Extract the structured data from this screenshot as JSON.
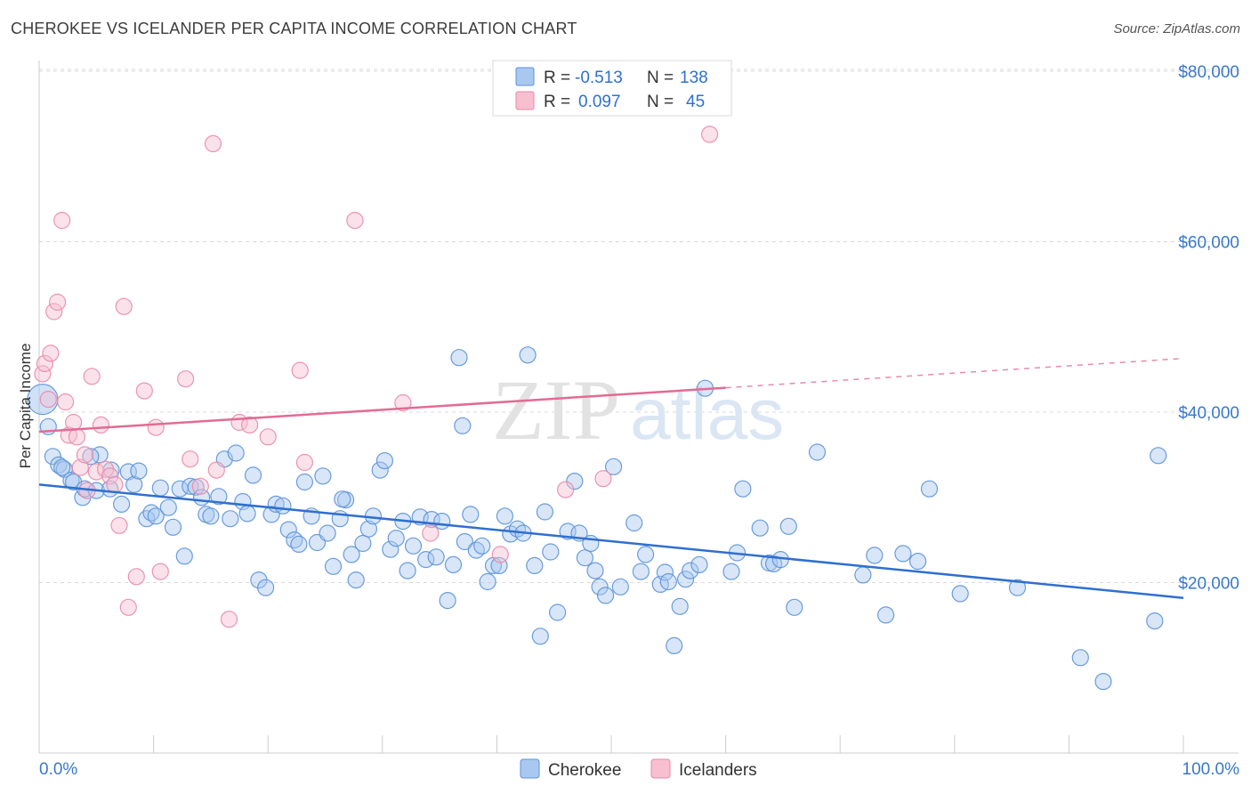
{
  "title": "CHEROKEE VS ICELANDER PER CAPITA INCOME CORRELATION CHART",
  "source": "Source: ZipAtlas.com",
  "watermark": {
    "zip": "ZIP",
    "atlas": "atlas"
  },
  "colors": {
    "cherokee_fill": "#a9c8f0",
    "cherokee_stroke": "#5b92d8",
    "cherokee_line": "#2f6fd0",
    "icelander_fill": "#f7bfd0",
    "icelander_stroke": "#e88aa8",
    "icelander_line": "#e26b94",
    "axis_text": "#3a78c9",
    "grid": "#d9d9d9"
  },
  "legend": {
    "rows": [
      {
        "r_label": "R =",
        "r_value": "-0.513",
        "n_label": "N =",
        "n_value": "138"
      },
      {
        "r_label": "R =",
        "r_value": "0.097",
        "n_label": "N =",
        "n_value": "45"
      }
    ]
  },
  "bottom_legend": [
    "Cherokee",
    "Icelanders"
  ],
  "chart_data": {
    "type": "scatter",
    "title": "CHEROKEE VS ICELANDER PER CAPITA INCOME CORRELATION CHART",
    "xlabel": "",
    "ylabel": "Per Capita Income",
    "xlim": [
      0,
      100
    ],
    "ylim": [
      0,
      82000
    ],
    "x_tick_labels": [
      "0.0%",
      "100.0%"
    ],
    "y_ticks": [
      20000,
      40000,
      60000,
      80000
    ],
    "y_tick_labels": [
      "$20,000",
      "$40,000",
      "$60,000",
      "$80,000"
    ],
    "grid": true,
    "legend_position": "top-center",
    "series": [
      {
        "name": "Cherokee",
        "r": -0.513,
        "n": 138,
        "trend": {
          "x": [
            0,
            100
          ],
          "y": [
            31500,
            18200
          ],
          "dashed_from": null
        },
        "points": [
          [
            0.3,
            41500
          ],
          [
            0.8,
            38300
          ],
          [
            1.2,
            34800
          ],
          [
            1.7,
            33800
          ],
          [
            2.2,
            33300
          ],
          [
            2.8,
            32000
          ],
          [
            3.8,
            30000
          ],
          [
            5.3,
            35000
          ],
          [
            6.3,
            33200
          ],
          [
            2.0,
            33500
          ],
          [
            3.0,
            31800
          ],
          [
            4.0,
            31000
          ],
          [
            4.5,
            34800
          ],
          [
            5.0,
            30800
          ],
          [
            6.2,
            31000
          ],
          [
            7.2,
            29200
          ],
          [
            7.8,
            33000
          ],
          [
            8.3,
            31500
          ],
          [
            8.7,
            33100
          ],
          [
            9.4,
            27500
          ],
          [
            9.8,
            28200
          ],
          [
            10.2,
            27800
          ],
          [
            10.6,
            31100
          ],
          [
            11.3,
            28800
          ],
          [
            11.7,
            26500
          ],
          [
            12.3,
            31000
          ],
          [
            12.7,
            23100
          ],
          [
            13.2,
            31300
          ],
          [
            13.7,
            31200
          ],
          [
            14.2,
            30000
          ],
          [
            14.6,
            28000
          ],
          [
            15.0,
            27800
          ],
          [
            15.7,
            30100
          ],
          [
            16.2,
            34500
          ],
          [
            16.7,
            27500
          ],
          [
            17.2,
            35200
          ],
          [
            17.8,
            29500
          ],
          [
            18.2,
            28100
          ],
          [
            18.7,
            32600
          ],
          [
            19.2,
            20300
          ],
          [
            19.8,
            19400
          ],
          [
            20.3,
            28000
          ],
          [
            20.7,
            29200
          ],
          [
            21.3,
            29000
          ],
          [
            21.8,
            26200
          ],
          [
            22.3,
            25000
          ],
          [
            22.7,
            24500
          ],
          [
            23.2,
            31800
          ],
          [
            23.8,
            27800
          ],
          [
            24.3,
            24700
          ],
          [
            24.8,
            32500
          ],
          [
            25.2,
            25800
          ],
          [
            25.7,
            21900
          ],
          [
            26.3,
            27500
          ],
          [
            26.8,
            29700
          ],
          [
            27.3,
            23300
          ],
          [
            27.7,
            20300
          ],
          [
            28.3,
            24600
          ],
          [
            28.8,
            26300
          ],
          [
            29.2,
            27800
          ],
          [
            29.8,
            33200
          ],
          [
            30.2,
            34300
          ],
          [
            30.7,
            23900
          ],
          [
            31.2,
            25200
          ],
          [
            31.8,
            27200
          ],
          [
            32.2,
            21400
          ],
          [
            32.7,
            24300
          ],
          [
            33.3,
            27700
          ],
          [
            33.8,
            22700
          ],
          [
            34.3,
            27400
          ],
          [
            34.7,
            23000
          ],
          [
            35.2,
            27200
          ],
          [
            35.7,
            17900
          ],
          [
            36.2,
            22100
          ],
          [
            36.7,
            46400
          ],
          [
            37.2,
            24800
          ],
          [
            37.7,
            28000
          ],
          [
            38.2,
            23800
          ],
          [
            38.7,
            24300
          ],
          [
            39.2,
            20100
          ],
          [
            39.7,
            22000
          ],
          [
            40.2,
            22000
          ],
          [
            40.7,
            27800
          ],
          [
            41.2,
            25700
          ],
          [
            41.8,
            26300
          ],
          [
            42.3,
            25800
          ],
          [
            42.7,
            46700
          ],
          [
            43.3,
            22000
          ],
          [
            43.8,
            13700
          ],
          [
            44.2,
            28300
          ],
          [
            44.7,
            23600
          ],
          [
            45.3,
            16500
          ],
          [
            46.2,
            26000
          ],
          [
            46.8,
            31900
          ],
          [
            47.2,
            25800
          ],
          [
            47.7,
            22900
          ],
          [
            48.2,
            24600
          ],
          [
            48.6,
            21400
          ],
          [
            49.0,
            19500
          ],
          [
            49.5,
            18500
          ],
          [
            50.2,
            33600
          ],
          [
            50.8,
            19500
          ],
          [
            52.0,
            27000
          ],
          [
            52.6,
            21300
          ],
          [
            53.0,
            23300
          ],
          [
            54.3,
            19800
          ],
          [
            54.7,
            21200
          ],
          [
            55.0,
            20100
          ],
          [
            55.5,
            12600
          ],
          [
            56.0,
            17200
          ],
          [
            56.5,
            20400
          ],
          [
            56.9,
            21400
          ],
          [
            57.7,
            22100
          ],
          [
            58.2,
            42800
          ],
          [
            60.5,
            21300
          ],
          [
            61.0,
            23500
          ],
          [
            61.5,
            31000
          ],
          [
            63.0,
            26400
          ],
          [
            63.8,
            22300
          ],
          [
            64.2,
            22200
          ],
          [
            64.8,
            22700
          ],
          [
            65.5,
            26600
          ],
          [
            66.0,
            17100
          ],
          [
            68.0,
            35300
          ],
          [
            72.0,
            20900
          ],
          [
            73.0,
            23200
          ],
          [
            74.0,
            16200
          ],
          [
            75.5,
            23400
          ],
          [
            76.8,
            22500
          ],
          [
            77.8,
            31000
          ],
          [
            80.5,
            18700
          ],
          [
            85.5,
            19400
          ],
          [
            91.0,
            11200
          ],
          [
            93.0,
            8400
          ],
          [
            97.5,
            15500
          ],
          [
            97.8,
            34900
          ],
          [
            37.0,
            38400
          ],
          [
            26.5,
            29800
          ]
        ]
      },
      {
        "name": "Icelanders",
        "r": 0.097,
        "n": 45,
        "trend": {
          "x": [
            0,
            100
          ],
          "y": [
            37700,
            46300
          ],
          "dashed_from": 60
        },
        "points": [
          [
            0.3,
            44500
          ],
          [
            0.5,
            45700
          ],
          [
            0.8,
            41500
          ],
          [
            1.0,
            46900
          ],
          [
            1.3,
            51800
          ],
          [
            1.6,
            52900
          ],
          [
            2.0,
            62500
          ],
          [
            2.3,
            41200
          ],
          [
            2.6,
            37300
          ],
          [
            3.0,
            38800
          ],
          [
            3.3,
            37100
          ],
          [
            3.6,
            33500
          ],
          [
            4.0,
            35000
          ],
          [
            4.2,
            30800
          ],
          [
            4.6,
            44200
          ],
          [
            5.0,
            33000
          ],
          [
            5.4,
            38500
          ],
          [
            5.8,
            33300
          ],
          [
            6.2,
            32500
          ],
          [
            6.6,
            31500
          ],
          [
            7.0,
            26700
          ],
          [
            7.4,
            52400
          ],
          [
            7.8,
            17100
          ],
          [
            8.5,
            20700
          ],
          [
            9.2,
            42500
          ],
          [
            10.2,
            38200
          ],
          [
            10.6,
            21300
          ],
          [
            12.8,
            43900
          ],
          [
            13.2,
            34500
          ],
          [
            14.1,
            31300
          ],
          [
            15.2,
            71500
          ],
          [
            15.5,
            33200
          ],
          [
            16.6,
            15700
          ],
          [
            17.5,
            38800
          ],
          [
            18.4,
            38500
          ],
          [
            20.0,
            37100
          ],
          [
            22.8,
            44900
          ],
          [
            23.2,
            34100
          ],
          [
            27.6,
            62500
          ],
          [
            31.8,
            41100
          ],
          [
            34.2,
            25800
          ],
          [
            40.3,
            23300
          ],
          [
            46.0,
            30900
          ],
          [
            49.3,
            32200
          ],
          [
            58.6,
            72600
          ]
        ]
      }
    ]
  }
}
